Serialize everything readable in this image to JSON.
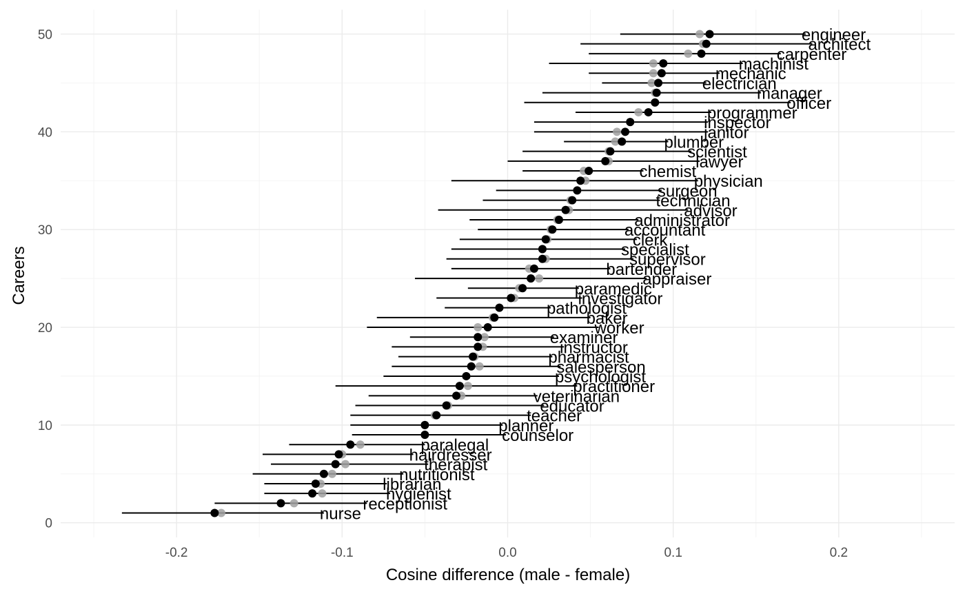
{
  "chart_data": {
    "type": "scatter",
    "title": "",
    "xlabel": "Cosine difference (male - female)",
    "ylabel": "Careers",
    "xlim": [
      -0.27,
      0.27
    ],
    "ylim": [
      -1.5,
      52.5
    ],
    "x_ticks": [
      -0.2,
      -0.1,
      0.0,
      0.1,
      0.2
    ],
    "x_tick_labels": [
      "-0.2",
      "-0.1",
      "0.0",
      "0.1",
      "0.2"
    ],
    "y_ticks": [
      0,
      10,
      20,
      30,
      40,
      50
    ],
    "y_tick_labels": [
      "0",
      "10",
      "20",
      "30",
      "40",
      "50"
    ],
    "grid": true,
    "colors": {
      "point": "#000000",
      "alt_point": "#a0a0a0",
      "interval": "#000000",
      "grid": "#ebebeb"
    },
    "series": [
      {
        "role": "primary",
        "color": "#000000",
        "points": [
          {
            "career": "engineer",
            "y": 50,
            "x": 0.122,
            "low": 0.068,
            "high": 0.18,
            "alt_x": 0.116
          },
          {
            "career": "architect",
            "y": 49,
            "x": 0.12,
            "low": 0.044,
            "high": 0.184,
            "alt_x": 0.118
          },
          {
            "career": "carpenter",
            "y": 48,
            "x": 0.117,
            "low": 0.049,
            "high": 0.165,
            "alt_x": 0.109
          },
          {
            "career": "machinist",
            "y": 47,
            "x": 0.094,
            "low": 0.025,
            "high": 0.142,
            "alt_x": 0.088
          },
          {
            "career": "mechanic",
            "y": 46,
            "x": 0.093,
            "low": 0.049,
            "high": 0.128,
            "alt_x": 0.088
          },
          {
            "career": "electrician",
            "y": 45,
            "x": 0.091,
            "low": 0.057,
            "high": 0.12,
            "alt_x": 0.087
          },
          {
            "career": "manager",
            "y": 44,
            "x": 0.09,
            "low": 0.021,
            "high": 0.153,
            "alt_x": 0.089
          },
          {
            "career": "officer",
            "y": 43,
            "x": 0.089,
            "low": 0.01,
            "high": 0.171,
            "alt_x": 0.089
          },
          {
            "career": "programmer",
            "y": 42,
            "x": 0.085,
            "low": 0.041,
            "high": 0.123,
            "alt_x": 0.079
          },
          {
            "career": "inspector",
            "y": 41,
            "x": 0.074,
            "low": 0.016,
            "high": 0.121,
            "alt_x": 0.074
          },
          {
            "career": "janitor",
            "y": 40,
            "x": 0.071,
            "low": 0.016,
            "high": 0.121,
            "alt_x": 0.066
          },
          {
            "career": "plumber",
            "y": 39,
            "x": 0.069,
            "low": 0.034,
            "high": 0.097,
            "alt_x": 0.065
          },
          {
            "career": "scientist",
            "y": 38,
            "x": 0.062,
            "low": 0.009,
            "high": 0.111,
            "alt_x": 0.061
          },
          {
            "career": "lawyer",
            "y": 37,
            "x": 0.059,
            "low": 0.0,
            "high": 0.116,
            "alt_x": 0.061
          },
          {
            "career": "chemist",
            "y": 36,
            "x": 0.049,
            "low": 0.009,
            "high": 0.082,
            "alt_x": 0.046
          },
          {
            "career": "physician",
            "y": 35,
            "x": 0.044,
            "low": -0.034,
            "high": 0.115,
            "alt_x": 0.047
          },
          {
            "career": "surgeon",
            "y": 34,
            "x": 0.042,
            "low": -0.007,
            "high": 0.093,
            "alt_x": 0.042
          },
          {
            "career": "technician",
            "y": 33,
            "x": 0.039,
            "low": -0.015,
            "high": 0.092,
            "alt_x": 0.038
          },
          {
            "career": "advisor",
            "y": 32,
            "x": 0.035,
            "low": -0.042,
            "high": 0.109,
            "alt_x": 0.037
          },
          {
            "career": "administrator",
            "y": 31,
            "x": 0.031,
            "low": -0.023,
            "high": 0.079,
            "alt_x": 0.03
          },
          {
            "career": "accountant",
            "y": 30,
            "x": 0.027,
            "low": -0.018,
            "high": 0.073,
            "alt_x": 0.026
          },
          {
            "career": "clerk",
            "y": 29,
            "x": 0.023,
            "low": -0.029,
            "high": 0.078,
            "alt_x": 0.024
          },
          {
            "career": "specialist",
            "y": 28,
            "x": 0.021,
            "low": -0.034,
            "high": 0.071,
            "alt_x": 0.021
          },
          {
            "career": "supervisor",
            "y": 27,
            "x": 0.021,
            "low": -0.037,
            "high": 0.076,
            "alt_x": 0.023
          },
          {
            "career": "bartender",
            "y": 26,
            "x": 0.016,
            "low": -0.034,
            "high": 0.062,
            "alt_x": 0.013
          },
          {
            "career": "appraiser",
            "y": 25,
            "x": 0.014,
            "low": -0.056,
            "high": 0.084,
            "alt_x": 0.019
          },
          {
            "career": "paramedic",
            "y": 24,
            "x": 0.009,
            "low": -0.024,
            "high": 0.043,
            "alt_x": 0.007
          },
          {
            "career": "investigator",
            "y": 23,
            "x": 0.002,
            "low": -0.043,
            "high": 0.045,
            "alt_x": 0.004
          },
          {
            "career": "pathologist",
            "y": 22,
            "x": -0.005,
            "low": -0.038,
            "high": 0.026,
            "alt_x": -0.005
          },
          {
            "career": "baker",
            "y": 21,
            "x": -0.008,
            "low": -0.079,
            "high": 0.05,
            "alt_x": -0.009
          },
          {
            "career": "worker",
            "y": 20,
            "x": -0.012,
            "low": -0.085,
            "high": 0.055,
            "alt_x": -0.018
          },
          {
            "career": "examiner",
            "y": 19,
            "x": -0.018,
            "low": -0.059,
            "high": 0.028,
            "alt_x": -0.014
          },
          {
            "career": "instructor",
            "y": 18,
            "x": -0.018,
            "low": -0.07,
            "high": 0.034,
            "alt_x": -0.015
          },
          {
            "career": "pharmacist",
            "y": 17,
            "x": -0.021,
            "low": -0.066,
            "high": 0.027,
            "alt_x": -0.02
          },
          {
            "career": "salesperson",
            "y": 16,
            "x": -0.022,
            "low": -0.07,
            "high": 0.032,
            "alt_x": -0.017
          },
          {
            "career": "psychologist",
            "y": 15,
            "x": -0.025,
            "low": -0.075,
            "high": 0.031,
            "alt_x": -0.025
          },
          {
            "career": "practitioner",
            "y": 14,
            "x": -0.029,
            "low": -0.104,
            "high": 0.042,
            "alt_x": -0.024
          },
          {
            "career": "veterinarian",
            "y": 13,
            "x": -0.031,
            "low": -0.084,
            "high": 0.018,
            "alt_x": -0.028
          },
          {
            "career": "educator",
            "y": 12,
            "x": -0.037,
            "low": -0.092,
            "high": 0.022,
            "alt_x": -0.036
          },
          {
            "career": "teacher",
            "y": 11,
            "x": -0.043,
            "low": -0.095,
            "high": 0.014,
            "alt_x": -0.044
          },
          {
            "career": "planner",
            "y": 10,
            "x": -0.05,
            "low": -0.095,
            "high": -0.003,
            "alt_x": -0.05
          },
          {
            "career": "counselor",
            "y": 9,
            "x": -0.05,
            "low": -0.094,
            "high": -0.001,
            "alt_x": -0.05
          },
          {
            "career": "paralegal",
            "y": 8,
            "x": -0.095,
            "low": -0.132,
            "high": -0.05,
            "alt_x": -0.089
          },
          {
            "career": "hairdresser",
            "y": 7,
            "x": -0.102,
            "low": -0.148,
            "high": -0.057,
            "alt_x": -0.1
          },
          {
            "career": "therapist",
            "y": 6,
            "x": -0.104,
            "low": -0.143,
            "high": -0.048,
            "alt_x": -0.098
          },
          {
            "career": "nutritionist",
            "y": 5,
            "x": -0.111,
            "low": -0.154,
            "high": -0.063,
            "alt_x": -0.106
          },
          {
            "career": "librarian",
            "y": 4,
            "x": -0.116,
            "low": -0.147,
            "high": -0.073,
            "alt_x": -0.113
          },
          {
            "career": "hygienist",
            "y": 3,
            "x": -0.118,
            "low": -0.147,
            "high": -0.071,
            "alt_x": -0.112
          },
          {
            "career": "receptionist",
            "y": 2,
            "x": -0.137,
            "low": -0.177,
            "high": -0.085,
            "alt_x": -0.129
          },
          {
            "career": "nurse",
            "y": 1,
            "x": -0.177,
            "low": -0.233,
            "high": -0.111,
            "alt_x": -0.173
          }
        ]
      }
    ]
  }
}
